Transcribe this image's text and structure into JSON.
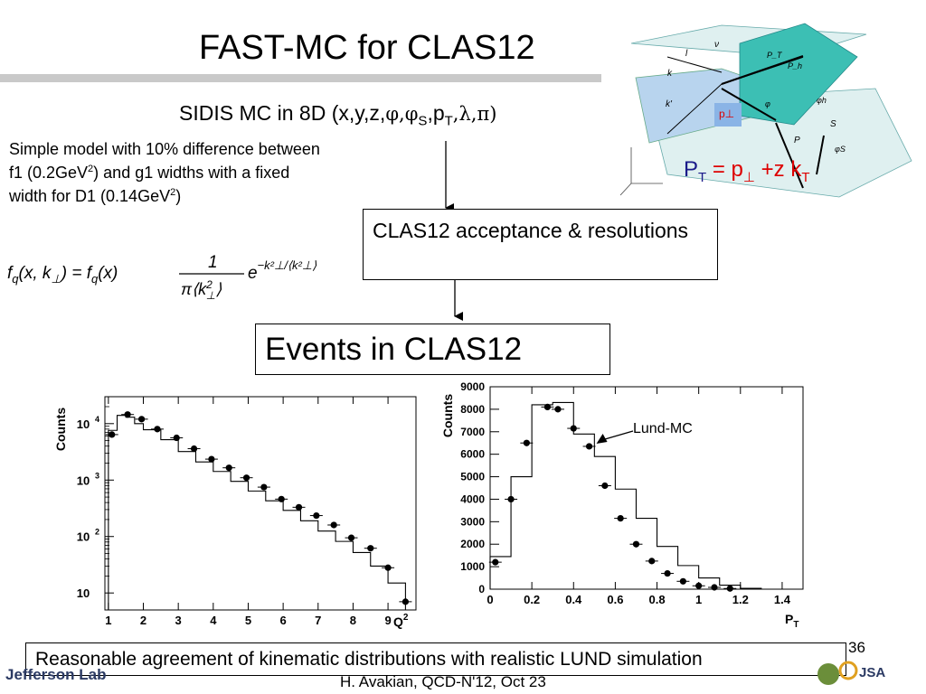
{
  "slide": {
    "title": "FAST-MC for CLAS12",
    "subtitle_prefix": "SIDIS MC in 8D (x,y,z,",
    "subtitle_phi": "φ,φ",
    "subtitle_sub_s": "S",
    "subtitle_p": ",p",
    "subtitle_sub_t": "T",
    "subtitle_suffix": ",λ,π)",
    "model_part1": "Simple model with 10% difference between f1 (0.2GeV",
    "model_sup1": "2",
    "model_part2": ") and g1 widths with a fixed width for D1 (0.14GeV",
    "model_sup2": "2",
    "model_part3": ")",
    "acceptance_box": "CLAS12 acceptance & resolutions",
    "events_box": "Events in CLAS12",
    "conclusion": "Reasonable agreement of kinematic distributions with realistic LUND simulation",
    "footer": "H. Avakian, QCD-N'12,  Oct 23",
    "page_number": "36",
    "logo_left": "Jefferson Lab",
    "logo_right": "JSA",
    "pt_equation": {
      "p": "P",
      "t": "T",
      "eq": " = p",
      "perp": "⊥",
      "plus": " +z k",
      "t2": "T"
    }
  },
  "diagram": {
    "labels": [
      "l",
      "ν",
      "k",
      "k'",
      "p⊥",
      "P",
      "S",
      "φ",
      "φh",
      "φS",
      "P_T",
      "P_h"
    ]
  },
  "colors": {
    "teal_plane": "#3cbfb4",
    "light_plane": "#dff0f0",
    "blue_plane": "#b8d4ee",
    "red": "#dd0000",
    "navy": "#2b3a63"
  },
  "chart_data": [
    {
      "type": "line",
      "name": "Q2 distribution",
      "xlabel": "Q",
      "xlabel_sup": "2",
      "ylabel": "Counts",
      "log_y": true,
      "xlim": [
        0.9,
        9.8
      ],
      "ylim": [
        5,
        30000
      ],
      "x_ticks": [
        "1",
        "2",
        "3",
        "4",
        "5",
        "6",
        "7",
        "8",
        "9"
      ],
      "y_ticks": [
        {
          "base": "10",
          "exp": "4",
          "value": 10000
        },
        {
          "base": "10",
          "exp": "3",
          "value": 1000
        },
        {
          "base": "10",
          "exp": "2",
          "value": 100
        },
        {
          "base": "10",
          "exp": "",
          "value": 10
        }
      ],
      "hist_edges": [
        1.0,
        1.25,
        1.5,
        1.75,
        2.0,
        2.5,
        3.0,
        3.5,
        4.0,
        4.5,
        5.0,
        5.5,
        6.0,
        6.5,
        7.0,
        7.5,
        8.0,
        8.5,
        9.0,
        9.5,
        9.8
      ],
      "hist_values": [
        7600,
        14000,
        13000,
        10000,
        7800,
        5200,
        3200,
        2100,
        1420,
        950,
        640,
        430,
        290,
        190,
        125,
        82,
        52,
        30,
        15,
        5
      ],
      "points_x": [
        1.1,
        1.55,
        1.95,
        2.4,
        2.95,
        3.45,
        3.95,
        4.45,
        4.95,
        5.45,
        5.95,
        6.45,
        6.95,
        7.45,
        7.95,
        8.5,
        9.0,
        9.5
      ],
      "points_y": [
        6400,
        14500,
        12000,
        8000,
        5600,
        3600,
        2350,
        1650,
        1100,
        750,
        460,
        330,
        235,
        160,
        95,
        62,
        28,
        7
      ]
    },
    {
      "type": "line",
      "name": "PT distribution",
      "xlabel": "P",
      "xlabel_sub": "T",
      "ylabel": "Counts",
      "xlim": [
        0,
        1.5
      ],
      "ylim": [
        0,
        9000
      ],
      "x_ticks": [
        0,
        0.2,
        0.4,
        0.6,
        0.8,
        1,
        1.2,
        1.4
      ],
      "y_ticks": [
        0,
        1000,
        2000,
        3000,
        4000,
        5000,
        6000,
        7000,
        8000,
        9000
      ],
      "hist_edges": [
        0,
        0.05,
        0.1,
        0.15,
        0.2,
        0.25,
        0.3,
        0.35,
        0.4,
        0.45,
        0.5,
        0.55,
        0.6,
        0.65,
        0.7,
        0.75,
        0.8,
        0.85,
        0.9,
        0.95,
        1.0,
        1.05,
        1.1,
        1.15,
        1.2,
        1.25,
        1.3
      ],
      "hist_values": [
        1450,
        1450,
        5000,
        5000,
        8200,
        8200,
        8300,
        8300,
        6900,
        6900,
        5900,
        5900,
        4450,
        4450,
        3150,
        3150,
        1900,
        1900,
        1050,
        1050,
        500,
        500,
        180,
        180,
        40,
        40
      ],
      "points_x": [
        0.025,
        0.1,
        0.175,
        0.275,
        0.325,
        0.4,
        0.475,
        0.55,
        0.625,
        0.7,
        0.775,
        0.85,
        0.925,
        1.0,
        1.075,
        1.15
      ],
      "points_y": [
        1200,
        4000,
        6500,
        8100,
        8000,
        7150,
        6350,
        4600,
        3150,
        2000,
        1250,
        700,
        350,
        150,
        80,
        30
      ],
      "annotation": "Lund-MC",
      "annotation_point": [
        0.475,
        6350
      ]
    }
  ]
}
